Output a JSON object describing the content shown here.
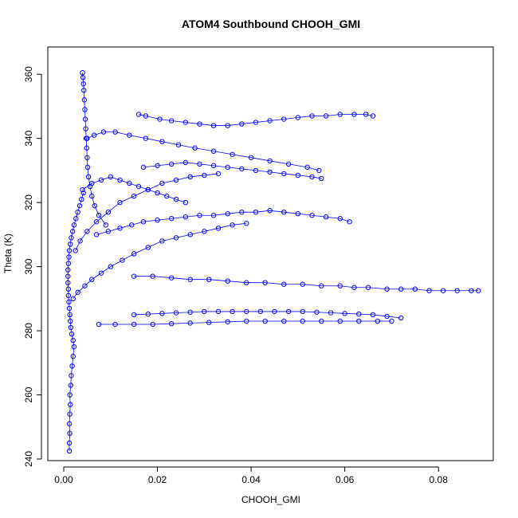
{
  "chart_data": {
    "type": "scatter",
    "title": "ATOM4 Southbound CHOOH_GMI",
    "xlabel": "CHOOH_GMI",
    "ylabel": "Theta (K)",
    "xlim": [
      -0.0034,
      0.0917
    ],
    "ylim": [
      239.5,
      368.5
    ],
    "xticks": [
      0.0,
      0.02,
      0.04,
      0.06,
      0.08
    ],
    "xtick_labels": [
      "0.00",
      "0.02",
      "0.04",
      "0.06",
      "0.08"
    ],
    "yticks": [
      240,
      260,
      280,
      300,
      320,
      340,
      360
    ],
    "ytick_labels": [
      "240",
      "260",
      "280",
      "300",
      "320",
      "340",
      "360"
    ],
    "grid": false,
    "marker": "open-circle",
    "color": "#0000ff",
    "series": [
      {
        "x": [
          0.0012,
          0.0012,
          0.0013,
          0.0012,
          0.0013,
          0.0014,
          0.0013,
          0.0015,
          0.0016,
          0.0018,
          0.002,
          0.0022,
          0.002,
          0.0017,
          0.0015,
          0.0014,
          0.0013,
          0.0012,
          0.0011,
          0.001,
          0.001,
          0.0009,
          0.0009,
          0.0009,
          0.001,
          0.0011,
          0.0012,
          0.0014,
          0.0016,
          0.0019,
          0.0022,
          0.0026,
          0.003,
          0.0034,
          0.0038,
          0.0042
        ],
        "y": [
          242.5,
          245,
          248,
          251,
          254,
          257,
          260,
          263,
          266,
          269,
          272,
          275,
          277,
          279,
          281,
          283,
          285,
          287,
          289,
          291,
          293,
          295,
          297,
          299,
          301,
          303,
          305,
          307,
          309,
          311,
          313,
          315,
          317,
          319,
          321,
          323
        ]
      },
      {
        "x": [
          0.004,
          0.0041,
          0.0042,
          0.0043,
          0.0044,
          0.0045,
          0.0046,
          0.0047,
          0.0048,
          0.0049,
          0.005,
          0.0051,
          0.0053,
          0.0056,
          0.006,
          0.0066,
          0.0075,
          0.009
        ],
        "y": [
          360.5,
          359,
          357,
          355,
          352,
          349,
          346,
          343,
          340,
          337,
          334,
          331,
          328,
          325,
          322,
          319,
          316,
          313
        ]
      },
      {
        "x": [
          0.016,
          0.0175,
          0.0205,
          0.023,
          0.026,
          0.029,
          0.032,
          0.035,
          0.038,
          0.041,
          0.044,
          0.047,
          0.05,
          0.053,
          0.056,
          0.059,
          0.062,
          0.0645,
          0.066
        ],
        "y": [
          347.5,
          347,
          346,
          345.5,
          345,
          344.5,
          344,
          344,
          344.5,
          345,
          345.5,
          346,
          346.5,
          347,
          347,
          347.5,
          347.5,
          347.5,
          347
        ]
      },
      {
        "x": [
          0.017,
          0.02,
          0.023,
          0.026,
          0.029,
          0.032,
          0.035,
          0.038,
          0.041,
          0.044,
          0.047,
          0.05,
          0.053,
          0.055
        ],
        "y": [
          331,
          331.5,
          332,
          332.5,
          332,
          331.5,
          331,
          330.5,
          330,
          329.5,
          329,
          328.5,
          328,
          327.5
        ]
      },
      {
        "x": [
          0.007,
          0.0095,
          0.012,
          0.0145,
          0.017,
          0.02,
          0.023,
          0.026,
          0.029,
          0.032,
          0.035,
          0.038,
          0.041,
          0.044,
          0.047,
          0.05,
          0.053,
          0.056,
          0.059,
          0.061
        ],
        "y": [
          310,
          311,
          312,
          313,
          314,
          314.5,
          315,
          315.5,
          316,
          316,
          316.5,
          317,
          317,
          317.5,
          317,
          316.5,
          316,
          315.5,
          315,
          314
        ]
      },
      {
        "x": [
          0.015,
          0.019,
          0.023,
          0.027,
          0.031,
          0.035,
          0.039,
          0.043,
          0.047,
          0.051,
          0.055,
          0.059,
          0.062,
          0.065,
          0.069,
          0.072,
          0.075,
          0.078,
          0.081,
          0.084,
          0.087,
          0.0885
        ],
        "y": [
          297,
          297,
          296.5,
          296,
          296,
          295.5,
          295,
          295,
          294.5,
          294.5,
          294,
          294,
          293.5,
          293.5,
          293,
          293,
          293,
          292.5,
          292.5,
          292.5,
          292.5,
          292.5
        ]
      },
      {
        "x": [
          0.015,
          0.018,
          0.021,
          0.024,
          0.027,
          0.03,
          0.033,
          0.036,
          0.039,
          0.042,
          0.045,
          0.048,
          0.051,
          0.054,
          0.057,
          0.06,
          0.063,
          0.066,
          0.069,
          0.072
        ],
        "y": [
          285,
          285.2,
          285.4,
          285.6,
          285.8,
          286,
          286,
          286,
          286,
          286,
          286,
          286,
          286,
          285.8,
          285.6,
          285.4,
          285.2,
          285,
          284.5,
          284
        ]
      },
      {
        "x": [
          0.0075,
          0.011,
          0.015,
          0.019,
          0.023,
          0.027,
          0.031,
          0.035,
          0.039,
          0.043,
          0.047,
          0.051,
          0.055,
          0.059,
          0.063,
          0.067,
          0.07
        ],
        "y": [
          282,
          282,
          282,
          282,
          282.2,
          282.4,
          282.6,
          282.8,
          283,
          283,
          283,
          283,
          283,
          283,
          283,
          283,
          283
        ]
      },
      {
        "x": [
          0.002,
          0.003,
          0.0045,
          0.006,
          0.008,
          0.01,
          0.0125,
          0.015,
          0.018,
          0.021,
          0.024,
          0.027,
          0.03,
          0.033,
          0.036,
          0.039
        ],
        "y": [
          290,
          292,
          294,
          296,
          298,
          300,
          302,
          304,
          306,
          308,
          309,
          310,
          311,
          312,
          313,
          313.5
        ]
      },
      {
        "x": [
          0.0025,
          0.0035,
          0.005,
          0.007,
          0.0095,
          0.012,
          0.015,
          0.018,
          0.021,
          0.024,
          0.027,
          0.03,
          0.033
        ],
        "y": [
          305,
          308,
          311,
          314,
          317,
          320,
          322,
          324,
          326,
          327,
          328,
          328.5,
          329
        ]
      },
      {
        "x": [
          0.005,
          0.0065,
          0.0085,
          0.011,
          0.014,
          0.0175,
          0.021,
          0.0245,
          0.028,
          0.032,
          0.036,
          0.04,
          0.044,
          0.048,
          0.052,
          0.0545
        ],
        "y": [
          340,
          341,
          342,
          342,
          341,
          340,
          339,
          338,
          337,
          336,
          335,
          334,
          333,
          332,
          331,
          330
        ]
      },
      {
        "x": [
          0.004,
          0.006,
          0.008,
          0.01,
          0.012,
          0.014,
          0.016,
          0.018,
          0.02,
          0.022,
          0.024,
          0.026
        ],
        "y": [
          324,
          326,
          327,
          328,
          327,
          326,
          325,
          324,
          323,
          322,
          321,
          320
        ]
      }
    ]
  }
}
